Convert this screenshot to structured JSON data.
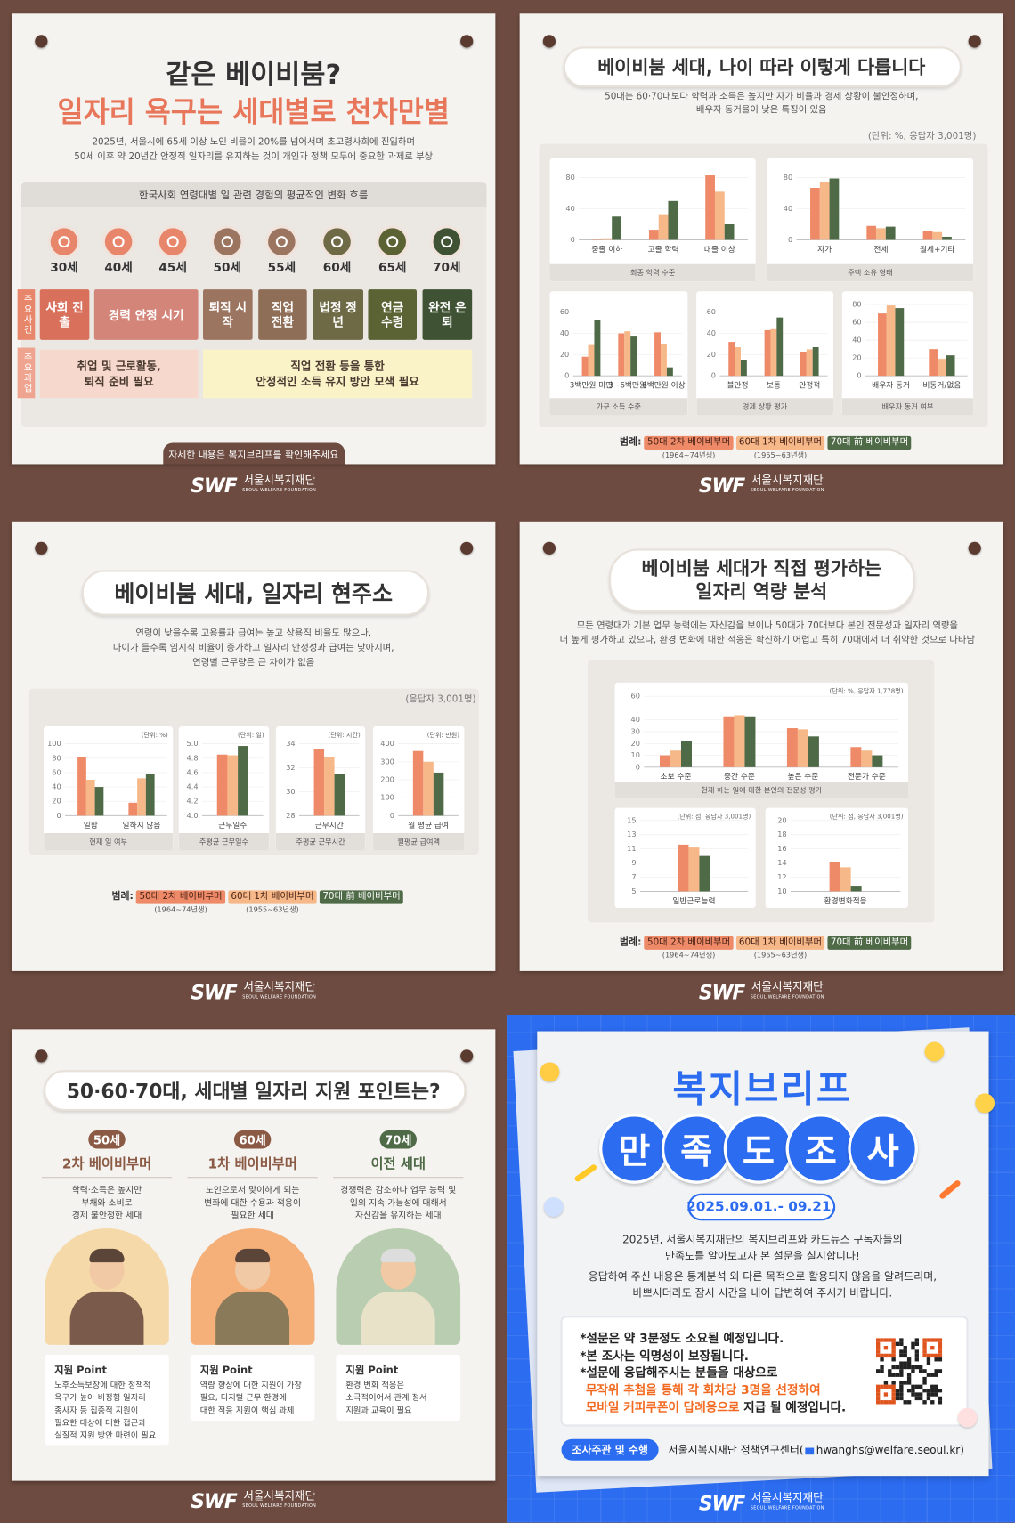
{
  "logo": {
    "mark": "SWF",
    "name": "서울시복지재단",
    "sub": "SEOUL WELFARE FOUNDATION"
  },
  "legend": {
    "label": "범례:",
    "items": [
      {
        "name": "50대 2차 베이비부머",
        "years": "(1964~74년생)",
        "color": "#ef8a68"
      },
      {
        "name": "60대 1차 베이비부머",
        "years": "(1955~63년생)",
        "color": "#f6b889"
      },
      {
        "name": "70대 前 베이비부머",
        "color": "#4f6a47"
      }
    ]
  },
  "panels": {
    "intro": {
      "title": "같은 베이비붐?",
      "subtitle": "일자리 욕구는 세대별로 천차만별",
      "description": [
        "2025년, 서울시에 65세 이상 노인 비율이 20%를 넘어서며 초고령사회에 진입하며",
        "50세 이후 약 20년간 안정적 일자리를 유지하는 것이 개인과 정책 모두에 중요한 과제로 부상"
      ],
      "timeline": {
        "title": "한국사회 연령대별 일 관련 경험의 평균적인 변화 흐름",
        "ages": [
          {
            "label": "30세",
            "color": "#e8866b"
          },
          {
            "label": "40세",
            "color": "#e8866b"
          },
          {
            "label": "45세",
            "color": "#e8866b"
          },
          {
            "label": "50세",
            "color": "#9c7560"
          },
          {
            "label": "55세",
            "color": "#9c7560"
          },
          {
            "label": "60세",
            "color": "#6e6a45"
          },
          {
            "label": "65세",
            "color": "#5b6334"
          },
          {
            "label": "70세",
            "color": "#3f5233"
          }
        ],
        "row_labels": [
          "주요사건",
          "주요과업"
        ],
        "events": [
          {
            "label": "사회 진출",
            "color": "#d9705c"
          },
          {
            "label": "경력 안정 시기",
            "color": "#d4857a"
          },
          {
            "label": "퇴직 시작",
            "color": "#9c7560"
          },
          {
            "label": "직업 전환",
            "color": "#8f6e58"
          },
          {
            "label": "법정 정년",
            "color": "#6e6a45"
          },
          {
            "label": "연금 수령",
            "color": "#5b6334"
          },
          {
            "label": "완전 은퇴",
            "color": "#3f5233"
          }
        ],
        "tasks": [
          [
            "취업 및 근로활동,",
            "퇴직 준비 필요"
          ],
          [
            "직업 전환 등을 통한",
            "안정적인 소득 유지 방안 모색 필요"
          ]
        ]
      },
      "footer": "자세한 내용은 복지브리프를 확인해주세요"
    },
    "differences": {
      "title": "베이비붐 세대, 나이 따라 이렇게 다릅니다",
      "description": [
        "50대는 60·70대보다 학력과 소득은 높지만 자가 비율과 경제 상황이 불안정하며,",
        "배우자 동거율이 낮은 특징이 있음"
      ],
      "unit": "(단위: %, 응답자 3,001명)",
      "charts": [
        {
          "type": "bar",
          "caption": "최종 학력 수준",
          "categories": [
            "중졸 이하",
            "고졸 학력",
            "대졸 이상"
          ],
          "series": [
            {
              "values": [
                1,
                13,
                83
              ]
            },
            {
              "values": [
                2,
                33,
                62
              ]
            },
            {
              "values": [
                30,
                50,
                20
              ]
            }
          ],
          "ylim": [
            0,
            90
          ],
          "yticks": [
            0,
            40,
            80
          ]
        },
        {
          "type": "bar",
          "caption": "주택 소유 형태",
          "categories": [
            "자가",
            "전세",
            "월세+기타"
          ],
          "series": [
            {
              "values": [
                67,
                18,
                12
              ]
            },
            {
              "values": [
                75,
                15,
                10
              ]
            },
            {
              "values": [
                79,
                17,
                4
              ]
            }
          ],
          "ylim": [
            0,
            90
          ],
          "yticks": [
            0,
            40,
            80
          ]
        },
        {
          "type": "bar",
          "caption": "가구 소득 수준",
          "categories": [
            "3백만원 미만",
            "3~6백만원",
            "6백만원 이상"
          ],
          "series": [
            {
              "values": [
                18,
                40,
                41
              ]
            },
            {
              "values": [
                29,
                42,
                30
              ]
            },
            {
              "values": [
                53,
                37,
                8
              ]
            }
          ],
          "ylim": [
            0,
            65
          ],
          "yticks": [
            0,
            20,
            40,
            60
          ]
        },
        {
          "type": "bar",
          "caption": "경제 상황 평가",
          "categories": [
            "불안정",
            "보통",
            "안정적"
          ],
          "series": [
            {
              "values": [
                32,
                43,
                22
              ]
            },
            {
              "values": [
                27,
                44,
                25
              ]
            },
            {
              "values": [
                15,
                55,
                27
              ]
            }
          ],
          "ylim": [
            0,
            65
          ],
          "yticks": [
            0,
            20,
            40,
            60
          ]
        },
        {
          "type": "bar",
          "caption": "배우자 동거 여부",
          "categories": [
            "배우자 동거",
            "비동거/없음"
          ],
          "series": [
            {
              "values": [
                70,
                30
              ]
            },
            {
              "values": [
                79,
                19
              ]
            },
            {
              "values": [
                76,
                23
              ]
            }
          ],
          "ylim": [
            0,
            85
          ],
          "yticks": [
            0,
            20,
            40,
            60,
            80
          ]
        }
      ]
    },
    "jobs": {
      "title": "베이비붐 세대, 일자리 현주소",
      "description": [
        "연령이 낮을수록 고용률과 급여는 높고 상용직 비율도 많으나,",
        "나이가 들수록 임시직 비율이 증가하고 일자리 안정성과 급여는 낮아지며,",
        "연령별 근무량은 큰 차이가 없음"
      ],
      "note": "(응답자 3,001명)",
      "charts": [
        {
          "type": "bar",
          "unit": "(단위: %)",
          "caption": "현재 일 여부",
          "categories": [
            "일함",
            "일하지 않음"
          ],
          "series": [
            {
              "values": [
                82,
                18
              ]
            },
            {
              "values": [
                50,
                52
              ]
            },
            {
              "values": [
                40,
                58
              ]
            }
          ],
          "ylim": [
            0,
            100
          ],
          "yticks": [
            0,
            20,
            40,
            60,
            80,
            100
          ]
        },
        {
          "type": "bar",
          "unit": "(단위: 일)",
          "caption": "주평균 근무일수",
          "categories": [
            "근무일수"
          ],
          "series": [
            {
              "values": [
                4.85
              ]
            },
            {
              "values": [
                4.84
              ]
            },
            {
              "values": [
                4.97
              ]
            }
          ],
          "ylim": [
            4,
            5
          ],
          "yticks": [
            {
              "value": 4,
              "label": "4.0"
            },
            4.2,
            4.4,
            4.6,
            4.8,
            {
              "value": 5,
              "label": "5.0"
            }
          ]
        },
        {
          "type": "bar",
          "unit": "(단위: 시간)",
          "caption": "주평균 근무시간",
          "categories": [
            "근무시간"
          ],
          "series": [
            {
              "values": [
                33.6
              ]
            },
            {
              "values": [
                32.9
              ]
            },
            {
              "values": [
                31.5
              ]
            }
          ],
          "ylim": [
            28,
            34
          ],
          "yticks": [
            28,
            30,
            32,
            34
          ]
        },
        {
          "type": "bar",
          "unit": "(단위: 만원)",
          "caption": "월평균 급여액",
          "categories": [
            "월 평균 급여"
          ],
          "series": [
            {
              "values": [
                360
              ]
            },
            {
              "values": [
                300
              ]
            },
            {
              "values": [
                240
              ]
            }
          ],
          "ylim": [
            0,
            400
          ],
          "yticks": [
            0,
            100,
            200,
            300,
            400
          ]
        }
      ]
    },
    "competence": {
      "title": [
        "베이비붐 세대가 직접 평가하는",
        "일자리 역량 분석"
      ],
      "description": [
        "모든 연령대가 기본 업무 능력에는 자신감을 보이나 50대가 70대보다 본인 전문성과 일자리 역량을",
        "더 높게 평가하고 있으나, 환경 변화에 대한 적응은 확신하기 어렵고 특히 70대에서 더 취약한 것으로 나타남"
      ],
      "charts": [
        {
          "type": "bar",
          "unit": "(단위: %, 응답자 1,778명)",
          "caption": "현재 하는 일에 대한 본인의 전문성 평가",
          "categories": [
            "초보 수준",
            "중간 수준",
            "높은 수준",
            "전문가 수준"
          ],
          "series": [
            {
              "values": [
                10,
                43,
                33,
                17
              ]
            },
            {
              "values": [
                14,
                44,
                32,
                14
              ]
            },
            {
              "values": [
                22,
                43,
                26,
                10
              ]
            }
          ],
          "ylim": [
            0,
            60
          ],
          "yticks": [
            0,
            10,
            20,
            30,
            40,
            60
          ]
        },
        {
          "type": "bar",
          "unit": "(단위: 점, 응답자 3,001명)",
          "categories": [
            "일반근로능력"
          ],
          "series": [
            {
              "values": [
                11.6
              ]
            },
            {
              "values": [
                11.2
              ]
            },
            {
              "values": [
                10
              ]
            }
          ],
          "ylim": [
            5,
            15
          ],
          "yticks": [
            5,
            7,
            9,
            11,
            13,
            15
          ]
        },
        {
          "type": "bar",
          "unit": "(단위: 점, 응답자 3,001명)",
          "categories": [
            "환경변화적응"
          ],
          "series": [
            {
              "values": [
                14.2
              ]
            },
            {
              "values": [
                13.4
              ]
            },
            {
              "values": [
                10.8
              ]
            }
          ],
          "ylim": [
            10,
            20
          ],
          "yticks": [
            10,
            12,
            14,
            16,
            18,
            20
          ]
        }
      ]
    },
    "support": {
      "title": "50·60·70대, 세대별 일자리 지원 포인트는?",
      "groups": [
        {
          "age": "50세",
          "name": "2차 베이비부머",
          "color": "#8a5a45",
          "art": "#f6d9a8",
          "description": [
            "학력·소득은 높지만",
            "부채와 소비로",
            "경제 불안정한 세대"
          ],
          "point_title": "지원 Point",
          "point": [
            "노후소득보장에 대한 정책적",
            "욕구가 높아 비정형 일자리",
            "종사자 등 집중적 지원이",
            "필요한 대상에 대한 접근과",
            "실질적 지원 방안 마련이 필요"
          ]
        },
        {
          "age": "60세",
          "name": "1차 베이비부머",
          "color": "#8a5a45",
          "art": "#f5b07a",
          "description": [
            "노인으로서 맞이하게 되는",
            "변화에 대한 수용과 적응이",
            "필요한 세대"
          ],
          "point_title": "지원 Point",
          "point": [
            "역량 향상에 대한 지원이 가장",
            "필요, 디지털 근무 환경에",
            "대한 적응 지원이 핵심 과제"
          ]
        },
        {
          "age": "70세",
          "name": "이전 세대",
          "color": "#4f6a47",
          "art": "#b9cdb0",
          "description": [
            "경쟁력은 감소하나 업무 능력 및",
            "일의 지속 가능성에 대해서",
            "자신감을 유지하는 세대"
          ],
          "point_title": "지원 Point",
          "point": [
            "환경 변화 적응은",
            "소극적이어서 관계·정서",
            "지원과 교육이 필요"
          ]
        }
      ]
    },
    "survey": {
      "title": "복지브리프",
      "badge": [
        "만",
        "족",
        "도",
        "조",
        "사"
      ],
      "period": "2025.09.01.- 09.21.",
      "intro": [
        "2025년, 서울시복지재단의 복지브리프와 카드뉴스 구독자들의",
        "만족도를 알아보고자 본 설문을 실시합니다!",
        "응답하여 주신 내용은 통계분석 외 다른 목적으로 활용되지 않음을 알려드리며,",
        "바쁘시더라도 잠시 시간을 내어 답변하여 주시기 바랍니다."
      ],
      "notes": [
        "*설문은 약 3분정도 소요될 예정입니다.",
        "*본 조사는 익명성이 보장됩니다.",
        "*설문에 응답해주시는 분들을 대상으로"
      ],
      "highlight": [
        "무작위 추첨을 통해 각 회차당 3명을 선정하여",
        "모바일 커피쿠폰이 답례용으로"
      ],
      "tail": " 지급 될 예정입니다.",
      "contact": {
        "label": "조사주관 및 수행",
        "org": "서울시복지재단 정책연구센터(",
        "email": "hwanghs@welfare.seoul.kr",
        "close": ")"
      }
    }
  }
}
